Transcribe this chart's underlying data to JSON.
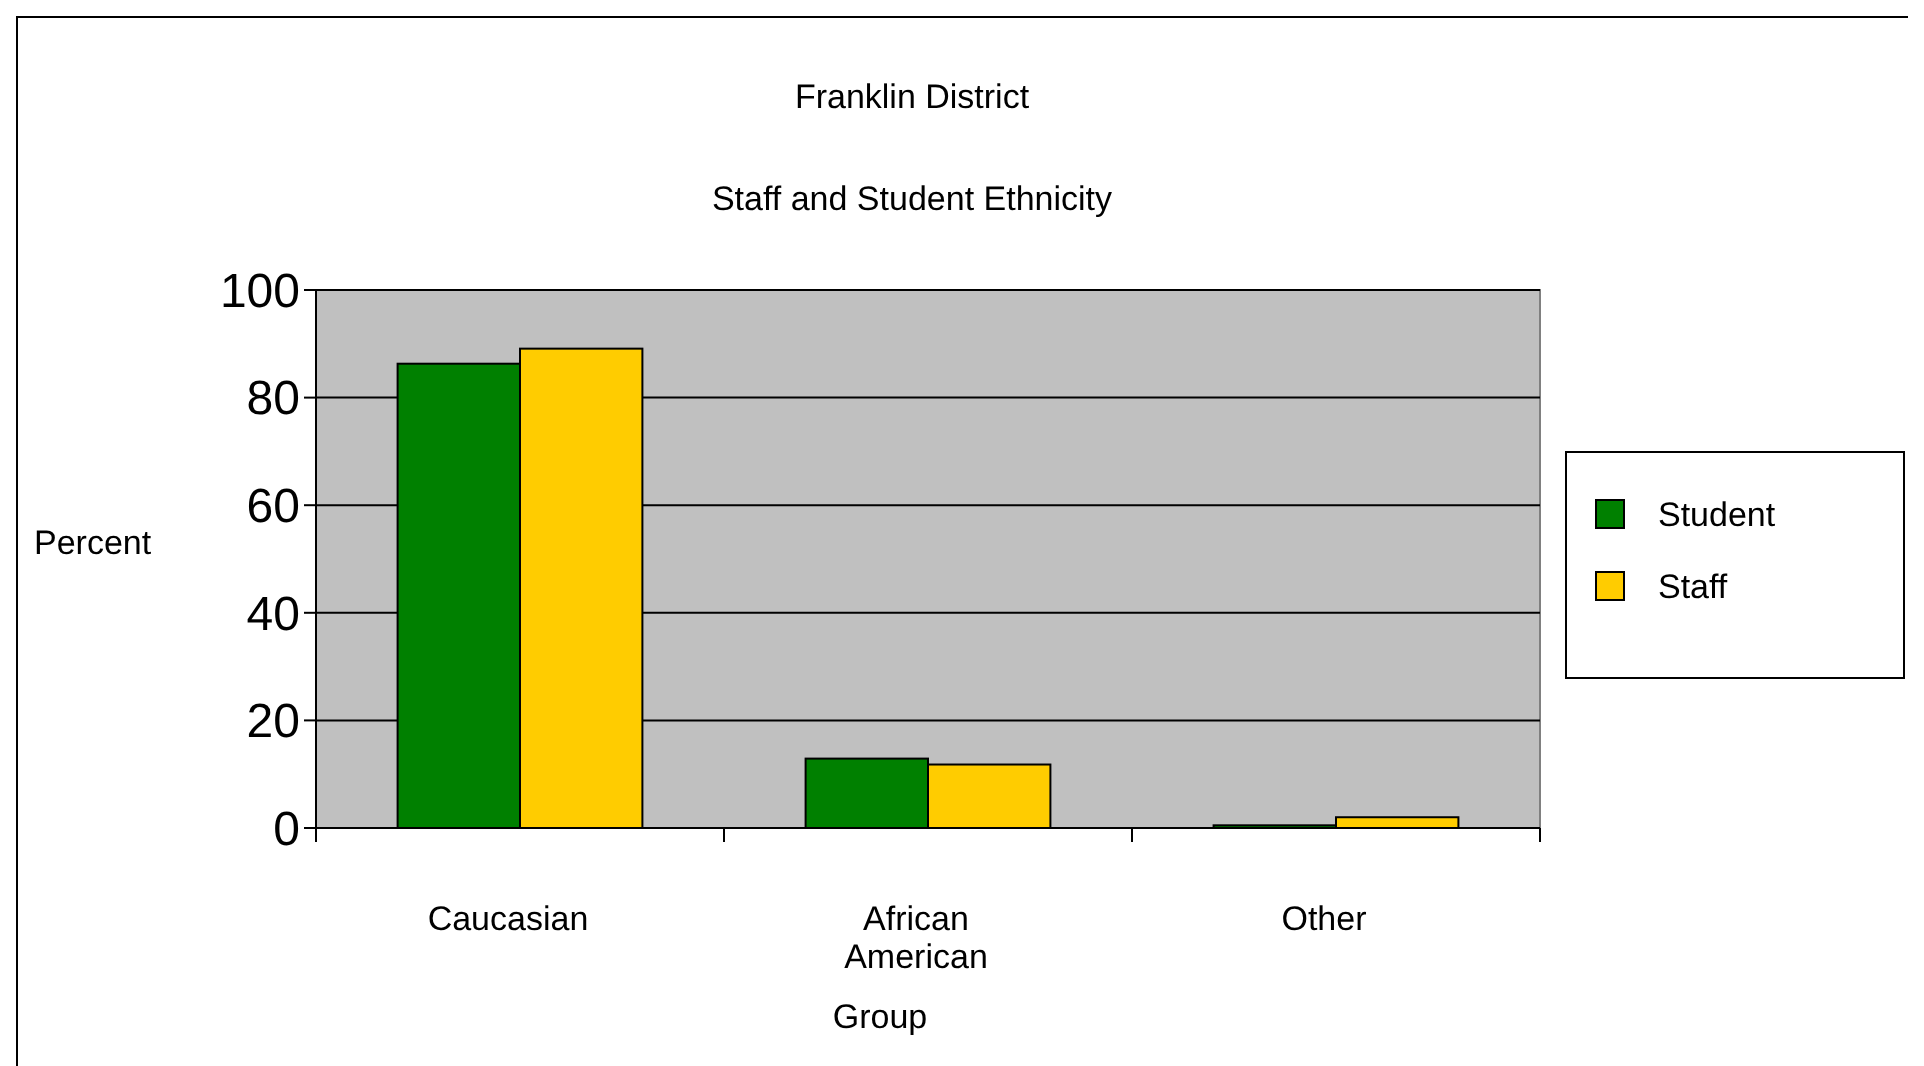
{
  "chart_data": {
    "type": "bar",
    "title": "Franklin District",
    "subtitle": "Staff and Student Ethnicity",
    "xlabel": "Group",
    "ylabel": "Percent",
    "categories": [
      "Caucasian",
      "African American",
      "Other"
    ],
    "series": [
      {
        "name": "Student",
        "color": "#008000",
        "values": [
          86.3,
          12.9,
          0.5
        ]
      },
      {
        "name": "Staff",
        "color": "#ffcc00",
        "values": [
          89.1,
          11.8,
          2.0
        ]
      }
    ],
    "ylim": [
      0,
      100
    ],
    "yticks": [
      0,
      20,
      40,
      60,
      80,
      100
    ],
    "grid": "y",
    "legend": "right"
  }
}
